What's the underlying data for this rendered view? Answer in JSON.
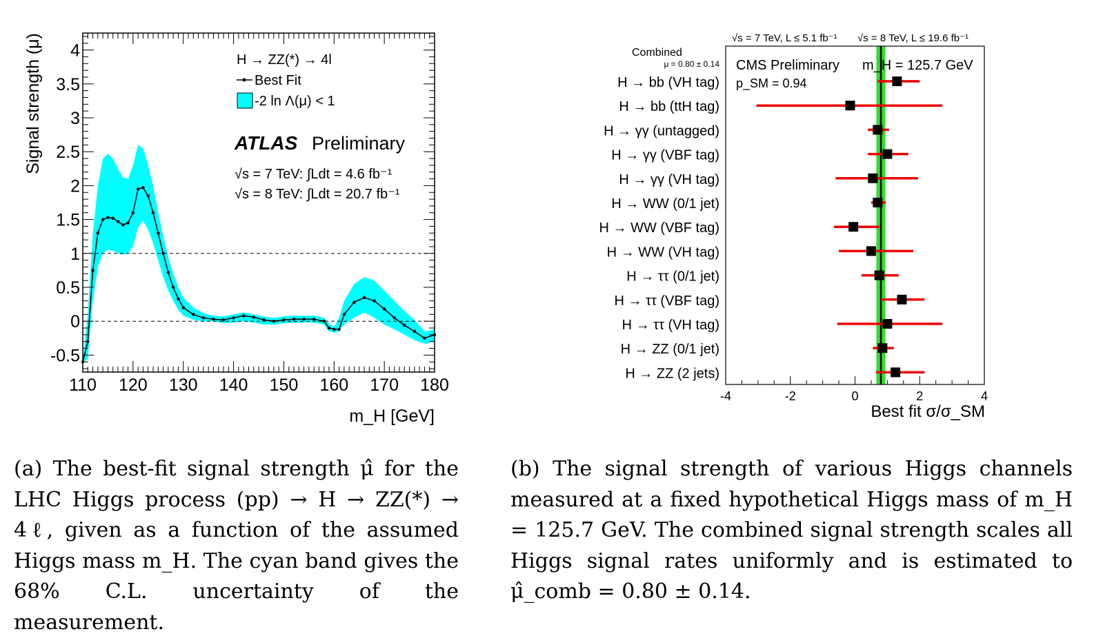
{
  "chart_data": [
    {
      "type": "line",
      "id": "atlas",
      "legend": {
        "process": "H → ZZ(*) → 4l",
        "best_fit": "Best Fit",
        "band": "-2 ln Λ(μ) < 1"
      },
      "experiment": "ATLAS",
      "status": "Preliminary",
      "lumi_7": "√s = 7 TeV:  ∫Ldt = 4.6 fb⁻¹",
      "lumi_8": "√s = 8 TeV:  ∫Ldt = 20.7 fb⁻¹",
      "xlabel": "m_H [GeV]",
      "ylabel": "Signal strength (μ)",
      "xlim": [
        110,
        180
      ],
      "ylim": [
        -0.75,
        4.25
      ],
      "xticks": [
        "110",
        "120",
        "130",
        "140",
        "150",
        "160",
        "170",
        "180"
      ],
      "yticks": [
        "-0.5",
        "0",
        "0.5",
        "1",
        "1.5",
        "2",
        "2.5",
        "3",
        "3.5",
        "4"
      ],
      "ref_lines": [
        0,
        1
      ],
      "band_color": "#00ffff",
      "x": [
        110,
        111,
        112,
        113,
        114,
        115,
        116,
        117,
        118,
        119,
        120,
        121,
        122,
        123,
        124,
        125,
        126,
        127,
        128,
        129,
        130,
        132,
        134,
        136,
        138,
        140,
        142,
        144,
        146,
        148,
        150,
        152,
        154,
        156,
        158,
        159,
        160,
        161,
        162,
        164,
        166,
        168,
        170,
        172,
        174,
        176,
        178,
        180
      ],
      "best": [
        -0.6,
        -0.3,
        0.75,
        1.3,
        1.5,
        1.53,
        1.52,
        1.47,
        1.42,
        1.45,
        1.6,
        1.95,
        1.97,
        1.85,
        1.6,
        1.3,
        1.0,
        0.72,
        0.5,
        0.33,
        0.2,
        0.1,
        0.05,
        0.03,
        0.02,
        0.05,
        0.08,
        0.06,
        0.02,
        0.0,
        0.02,
        0.03,
        0.03,
        0.03,
        0.0,
        -0.1,
        -0.12,
        -0.12,
        0.1,
        0.28,
        0.35,
        0.3,
        0.18,
        0.05,
        -0.06,
        -0.15,
        -0.25,
        -0.2
      ],
      "band_lo": [
        -0.62,
        -0.55,
        0.3,
        0.8,
        1.0,
        1.05,
        1.04,
        1.0,
        0.98,
        1.0,
        1.1,
        1.38,
        1.48,
        1.35,
        1.15,
        0.9,
        0.65,
        0.45,
        0.3,
        0.17,
        0.08,
        0.02,
        0.0,
        0.0,
        -0.03,
        -0.02,
        0.0,
        -0.02,
        -0.05,
        -0.05,
        -0.03,
        -0.02,
        -0.02,
        -0.02,
        -0.05,
        -0.15,
        -0.17,
        -0.15,
        -0.05,
        0.05,
        0.13,
        0.05,
        -0.05,
        -0.12,
        -0.2,
        -0.28,
        -0.33,
        -0.3
      ],
      "band_hi": [
        -0.55,
        0.1,
        1.3,
        2.0,
        2.4,
        2.47,
        2.4,
        2.25,
        2.12,
        2.1,
        2.3,
        2.6,
        2.55,
        2.3,
        2.0,
        1.6,
        1.25,
        0.95,
        0.7,
        0.5,
        0.35,
        0.2,
        0.12,
        0.08,
        0.07,
        0.1,
        0.13,
        0.1,
        0.07,
        0.05,
        0.07,
        0.08,
        0.08,
        0.08,
        0.05,
        -0.03,
        -0.08,
        0.05,
        0.3,
        0.55,
        0.65,
        0.6,
        0.45,
        0.3,
        0.15,
        0.02,
        -0.15,
        -0.12
      ]
    },
    {
      "type": "scatter",
      "id": "cms",
      "header_7": "√s = 7 TeV, L ≤ 5.1 fb⁻¹",
      "header_8": "√s = 8 TeV, L ≤ 19.6 fb⁻¹",
      "experiment": "CMS Preliminary",
      "mass": "m_H = 125.7 GeV",
      "psm": "p_SM = 0.94",
      "combined_label": "Combined",
      "combined_value": "μ = 0.80 ± 0.14",
      "combined_mu": 0.8,
      "combined_lo": 0.66,
      "combined_hi": 0.94,
      "xlabel": "Best fit σ/σ_SM",
      "xlim": [
        -4,
        4
      ],
      "xticks": [
        "-4",
        "-2",
        "0",
        "2",
        "4"
      ],
      "colors": {
        "band": "#33dd33",
        "err": "#ee0000",
        "line": "#000000"
      },
      "categories": [
        "H → bb (VH tag)",
        "H → bb (ttH tag)",
        "H → γγ (untagged)",
        "H → γγ (VBF tag)",
        "H → γγ (VH tag)",
        "H → WW (0/1 jet)",
        "H → WW (VBF tag)",
        "H → WW (VH tag)",
        "H → ττ (0/1 jet)",
        "H → ττ (VBF tag)",
        "H → ττ (VH tag)",
        "H → ZZ (0/1 jet)",
        "H → ZZ (2 jets)"
      ],
      "mu": [
        1.3,
        -0.15,
        0.7,
        1.0,
        0.55,
        0.7,
        -0.05,
        0.5,
        0.75,
        1.45,
        1.0,
        0.85,
        1.25
      ],
      "lo": [
        0.7,
        -3.05,
        0.4,
        0.4,
        -0.6,
        0.5,
        -0.65,
        -0.5,
        0.2,
        0.8,
        -0.55,
        0.55,
        0.65
      ],
      "hi": [
        2.0,
        2.7,
        1.05,
        1.65,
        1.95,
        0.95,
        0.75,
        1.8,
        1.35,
        2.15,
        2.7,
        1.2,
        2.15
      ]
    }
  ],
  "captions": {
    "a": "(a) The best-fit signal strength μ̂ for the LHC Higgs process (pp) → H → ZZ(*) → 4ℓ, given as a function of the assumed Higgs mass m_H. The cyan band gives the 68% C.L. uncertainty of the measurement.",
    "b": "(b) The signal strength of various Higgs channels measured at a fixed hypothetical Higgs mass of m_H = 125.7 GeV. The combined signal strength scales all Higgs signal rates uniformly and is estimated to μ̂_comb = 0.80 ± 0.14."
  }
}
